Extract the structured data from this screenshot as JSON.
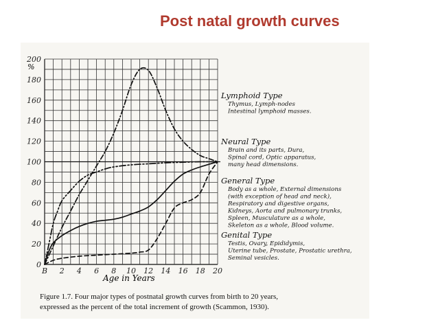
{
  "slide_title": "Post natal growth curves",
  "chart_data": {
    "type": "line",
    "x_ticks": [
      "B",
      "2",
      "4",
      "6",
      "8",
      "10",
      "12",
      "14",
      "16",
      "18",
      "20"
    ],
    "y_ticks": [
      "0",
      "20",
      "40",
      "60",
      "80",
      "100",
      "120",
      "140",
      "160",
      "180",
      "200"
    ],
    "y_unit": "%",
    "xlabel": "Age in Years",
    "xlim": [
      0,
      20
    ],
    "ylim": [
      0,
      200
    ],
    "grid": true,
    "series": [
      {
        "name": "Lymphoid Type",
        "style": "dash-dot",
        "description": [
          "Thymus, Lymph-nodes",
          "Intestinal lymphoid masses."
        ],
        "points": [
          [
            0,
            0
          ],
          [
            1,
            18
          ],
          [
            2,
            36
          ],
          [
            3,
            52
          ],
          [
            4,
            68
          ],
          [
            5,
            82
          ],
          [
            6,
            96
          ],
          [
            7,
            110
          ],
          [
            8,
            128
          ],
          [
            9,
            150
          ],
          [
            10,
            175
          ],
          [
            11,
            190
          ],
          [
            12,
            189
          ],
          [
            13,
            172
          ],
          [
            14,
            150
          ],
          [
            15,
            132
          ],
          [
            16,
            120
          ],
          [
            17,
            112
          ],
          [
            18,
            106
          ],
          [
            19,
            103
          ],
          [
            20,
            100
          ]
        ]
      },
      {
        "name": "Neural Type",
        "style": "dash-dot-dot",
        "description": [
          "Brain and its parts, Dura,",
          "Spinal cord, Optic apparatus,",
          "many head dimensions."
        ],
        "points": [
          [
            0,
            0
          ],
          [
            0.5,
            20
          ],
          [
            1,
            40
          ],
          [
            1.5,
            52
          ],
          [
            2,
            62
          ],
          [
            3,
            72
          ],
          [
            4,
            81
          ],
          [
            5,
            87
          ],
          [
            6,
            90
          ],
          [
            7,
            93
          ],
          [
            8,
            95
          ],
          [
            10,
            97
          ],
          [
            12,
            98
          ],
          [
            14,
            99
          ],
          [
            16,
            99.5
          ],
          [
            18,
            100
          ],
          [
            20,
            100
          ]
        ]
      },
      {
        "name": "General Type",
        "style": "solid",
        "description": [
          "Body as a whole, External dimensions",
          "(with exception of head and neck),",
          "Respiratory and digestive organs,",
          "Kidneys, Aorta and pulmonary trunks,",
          "Spleen, Musculature as a whole,",
          "Skeleton as a whole, Blood volume."
        ],
        "points": [
          [
            0,
            0
          ],
          [
            0.5,
            13
          ],
          [
            1,
            21
          ],
          [
            2,
            28
          ],
          [
            3,
            33
          ],
          [
            4,
            37
          ],
          [
            5,
            40
          ],
          [
            6,
            42
          ],
          [
            7,
            43
          ],
          [
            8,
            44
          ],
          [
            9,
            46
          ],
          [
            10,
            49
          ],
          [
            11,
            52
          ],
          [
            12,
            56
          ],
          [
            13,
            63
          ],
          [
            14,
            72
          ],
          [
            15,
            81
          ],
          [
            16,
            88
          ],
          [
            17,
            92
          ],
          [
            18,
            95
          ],
          [
            19,
            97.5
          ],
          [
            20,
            100
          ]
        ]
      },
      {
        "name": "Genital Type",
        "style": "dashed",
        "description": [
          "Testis, Ovary, Epididymis,",
          "Uterine tube, Prostate, Prostatic urethra,",
          "Seminal vesicles."
        ],
        "points": [
          [
            0,
            0
          ],
          [
            1,
            4
          ],
          [
            2,
            6
          ],
          [
            4,
            8
          ],
          [
            6,
            9
          ],
          [
            8,
            10
          ],
          [
            10,
            11
          ],
          [
            11,
            12
          ],
          [
            12,
            14
          ],
          [
            13,
            25
          ],
          [
            14,
            40
          ],
          [
            15,
            55
          ],
          [
            16,
            60
          ],
          [
            17,
            63
          ],
          [
            18,
            70
          ],
          [
            19,
            88
          ],
          [
            20,
            100
          ]
        ]
      }
    ],
    "caption": [
      "Figure 1.7. Four major types of postnatal growth curves from birth to 20 years,",
      "expressed as the percent of the total increment of growth (Scammon, 1930)."
    ]
  }
}
